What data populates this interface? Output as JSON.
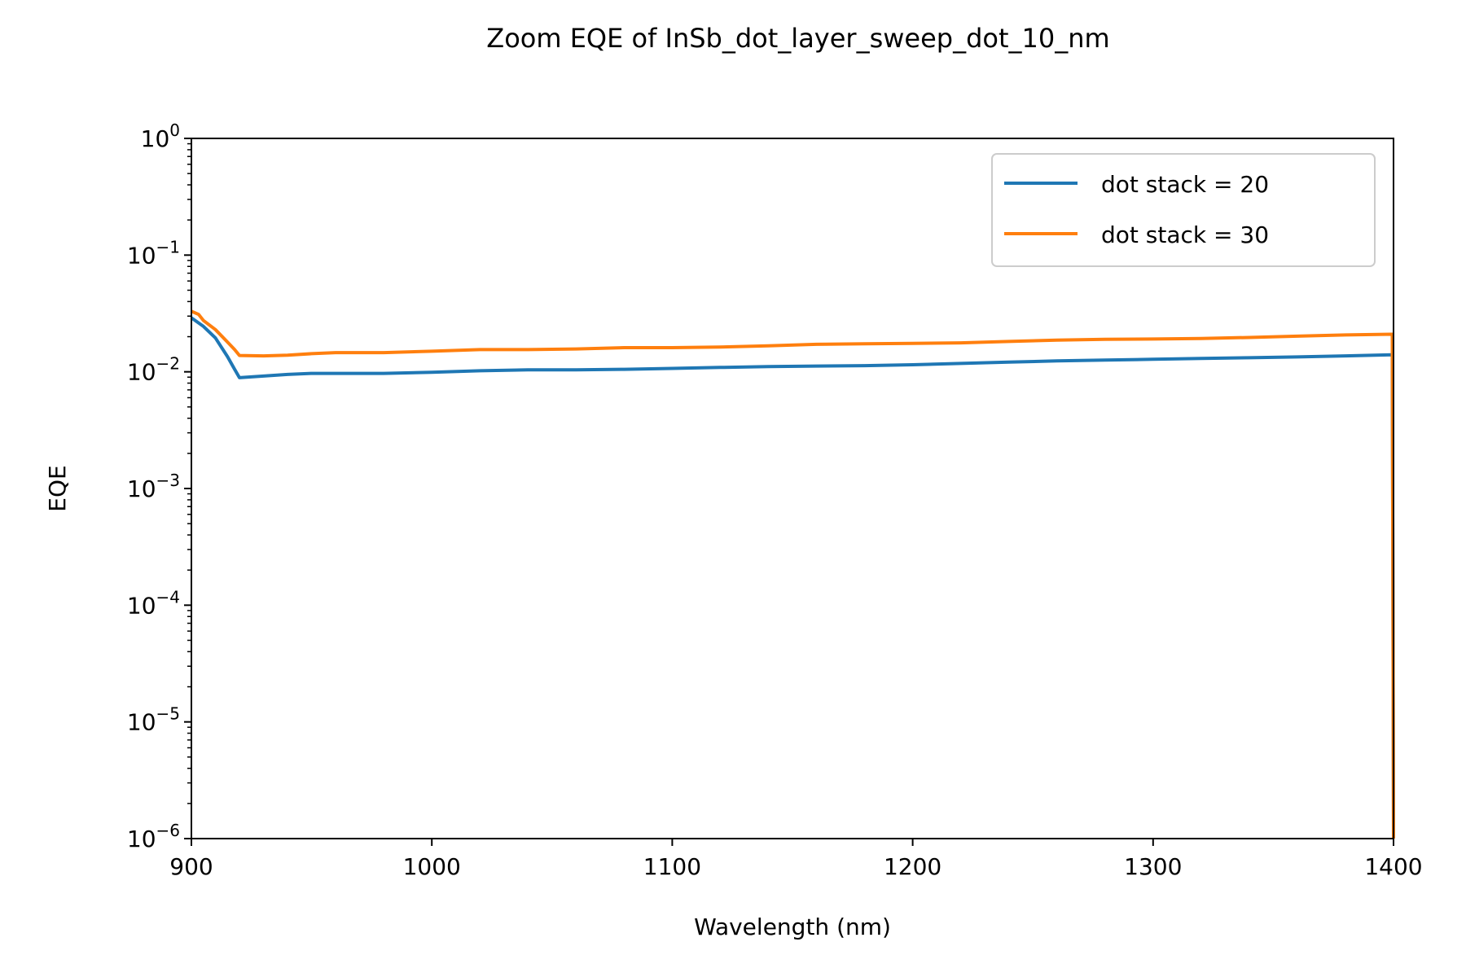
{
  "chart_data": {
    "type": "line",
    "title": "Zoom EQE of InSb_dot_layer_sweep_dot_10_nm",
    "xlabel": "Wavelength (nm)",
    "ylabel": "EQE",
    "xlim": [
      900,
      1400
    ],
    "ylim": [
      1e-06,
      1
    ],
    "yscale": "log",
    "x_ticks": [
      900,
      1000,
      1100,
      1200,
      1300,
      1400
    ],
    "y_ticks": [
      {
        "value": 1e-06,
        "base": "10",
        "exp": "−6"
      },
      {
        "value": 1e-05,
        "base": "10",
        "exp": "−5"
      },
      {
        "value": 0.0001,
        "base": "10",
        "exp": "−4"
      },
      {
        "value": 0.001,
        "base": "10",
        "exp": "−3"
      },
      {
        "value": 0.01,
        "base": "10",
        "exp": "−2"
      },
      {
        "value": 0.1,
        "base": "10",
        "exp": "−1"
      },
      {
        "value": 1,
        "base": "10",
        "exp": "0"
      }
    ],
    "grid": false,
    "legend_position": "top-right",
    "series": [
      {
        "name": "dot stack = 20",
        "color": "#1f77b4",
        "x": [
          900,
          905,
          910,
          915,
          918,
          920,
          930,
          940,
          950,
          960,
          980,
          1000,
          1020,
          1040,
          1060,
          1080,
          1100,
          1120,
          1140,
          1160,
          1180,
          1200,
          1220,
          1240,
          1260,
          1280,
          1300,
          1320,
          1340,
          1360,
          1380,
          1399.5,
          1400
        ],
        "y": [
          0.029,
          0.0245,
          0.0195,
          0.0135,
          0.0105,
          0.0089,
          0.0092,
          0.0095,
          0.0097,
          0.0097,
          0.0097,
          0.0099,
          0.0102,
          0.0104,
          0.0104,
          0.0105,
          0.0107,
          0.0109,
          0.0111,
          0.0112,
          0.0113,
          0.0115,
          0.0118,
          0.0121,
          0.0124,
          0.0126,
          0.0128,
          0.013,
          0.0132,
          0.0134,
          0.0137,
          0.014,
          1e-06
        ]
      },
      {
        "name": "dot stack = 30",
        "color": "#ff7f0e",
        "x": [
          900,
          903,
          905,
          910,
          915,
          918,
          920,
          930,
          940,
          950,
          960,
          980,
          1000,
          1020,
          1040,
          1060,
          1080,
          1100,
          1120,
          1140,
          1160,
          1180,
          1200,
          1220,
          1240,
          1260,
          1280,
          1300,
          1320,
          1340,
          1360,
          1380,
          1399.5,
          1400
        ],
        "y": [
          0.033,
          0.031,
          0.0275,
          0.023,
          0.018,
          0.0155,
          0.0138,
          0.0137,
          0.0139,
          0.0143,
          0.0146,
          0.0146,
          0.015,
          0.0155,
          0.0155,
          0.0157,
          0.0161,
          0.0161,
          0.0163,
          0.0167,
          0.0172,
          0.0174,
          0.0175,
          0.0177,
          0.0182,
          0.0187,
          0.019,
          0.0191,
          0.0193,
          0.0197,
          0.0202,
          0.0207,
          0.021,
          1e-06
        ]
      }
    ]
  }
}
